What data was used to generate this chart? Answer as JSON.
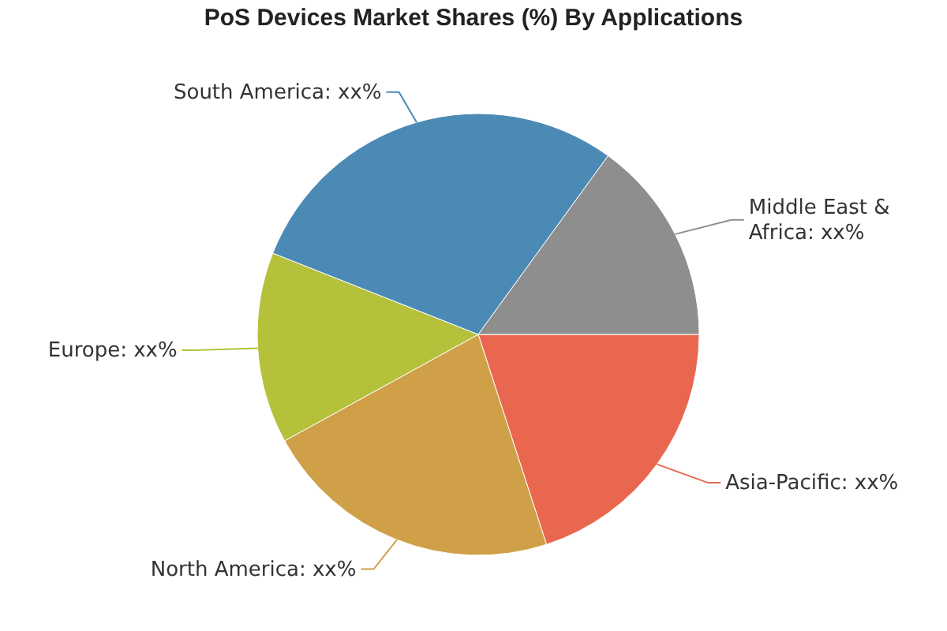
{
  "chart_data": {
    "type": "pie",
    "title": "PoS Devices Market Shares (%) By Applications",
    "categories": [
      "Asia-Pacific",
      "North America",
      "Europe",
      "South America",
      "Middle East & Africa"
    ],
    "values": [
      20,
      22,
      14,
      29,
      15
    ],
    "value_labels": [
      "xx%",
      "xx%",
      "xx%",
      "xx%",
      "xx%"
    ],
    "colors": [
      "#e8674e",
      "#cfa048",
      "#b5c13b",
      "#4b8ab5",
      "#8e8e8e"
    ]
  }
}
